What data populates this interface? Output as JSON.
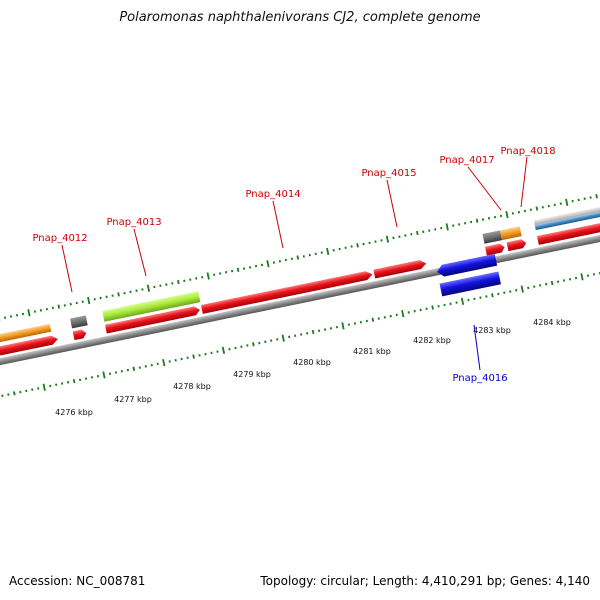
{
  "title": "Polaromonas naphthalenivorans CJ2, complete genome",
  "accession_label": "Accession: NC_008781",
  "summary": "Topology: circular; Length: 4,410,291 bp; Genes: 4,140",
  "colors": {
    "axis": "#8a8a8a",
    "tick": "#1d7a1d",
    "forward_gene": "#e8141b",
    "reverse_gene": "#1212e0",
    "label_forward": "#cc0000",
    "label_reverse": "#0000cc",
    "lime": "#a8e83a",
    "orange": "#f39a1e",
    "gray": "#6e6e6e",
    "steel": "#3f86c0",
    "silver": "#c4c4c4"
  },
  "ruler_labels": [
    "4276 kbp",
    "4277 kbp",
    "4278 kbp",
    "4279 kbp",
    "4280 kbp",
    "4281 kbp",
    "4282 kbp",
    "4283 kbp",
    "4284 kbp"
  ],
  "gene_labels": {
    "pnap_4012": "Pnap_4012",
    "pnap_4013": "Pnap_4013",
    "pnap_4014": "Pnap_4014",
    "pnap_4015": "Pnap_4015",
    "pnap_4016": "Pnap_4016",
    "pnap_4017": "Pnap_4017",
    "pnap_4018": "Pnap_4018"
  }
}
